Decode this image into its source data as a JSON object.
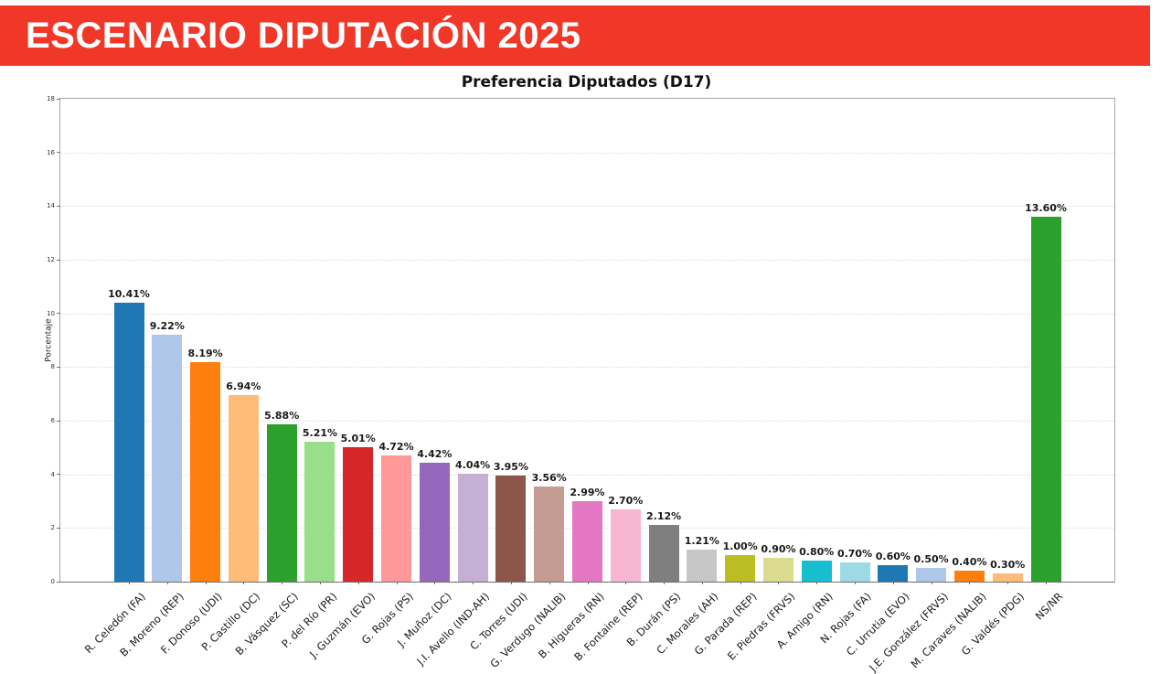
{
  "banner": {
    "title": "ESCENARIO DIPUTACIÓN 2025",
    "bg_color": "#f13728",
    "text_color": "#ffffff"
  },
  "chart_data": {
    "type": "bar",
    "title": "Preferencia Diputados (D17)",
    "xlabel": "",
    "ylabel": "Porcentaje",
    "ylim": [
      0,
      18
    ],
    "yticks": [
      0,
      2,
      4,
      6,
      8,
      10,
      12,
      14,
      16,
      18
    ],
    "grid": "horizontal-dotted",
    "legend": "none",
    "categories": [
      "R. Celedón (FA)",
      "B. Moreno (REP)",
      "F. Donoso (UDI)",
      "P. Castillo (DC)",
      "B. Vásquez (SC)",
      "P. del Río (PR)",
      "J. Guzmán (EVO)",
      "G. Rojas (PS)",
      "J. Muñoz (DC)",
      "J.I. Avello (IND-AH)",
      "C. Torres (UDI)",
      "G. Verdugo (NALIB)",
      "B. Higueras (RN)",
      "B. Fontaine (REP)",
      "B. Durán (PS)",
      "C. Morales (AH)",
      "G. Parada (REP)",
      "E. Piedras (FRVS)",
      "A. Amigo (RN)",
      "N. Rojas (FA)",
      "C. Urrutia (EVO)",
      "J.E. González (FRVS)",
      "M. Caraves (NALIB)",
      "G. Valdés (PDG)",
      "NS/NR"
    ],
    "values": [
      10.41,
      9.22,
      8.19,
      6.94,
      5.88,
      5.21,
      5.01,
      4.72,
      4.42,
      4.04,
      3.95,
      3.56,
      2.99,
      2.7,
      2.12,
      1.21,
      1.0,
      0.9,
      0.8,
      0.7,
      0.6,
      0.5,
      0.4,
      0.3,
      13.6
    ],
    "value_labels": [
      "10.41%",
      "9.22%",
      "8.19%",
      "6.94%",
      "5.88%",
      "5.21%",
      "5.01%",
      "4.72%",
      "4.42%",
      "4.04%",
      "3.95%",
      "3.56%",
      "2.99%",
      "2.70%",
      "2.12%",
      "1.21%",
      "1.00%",
      "0.90%",
      "0.80%",
      "0.70%",
      "0.60%",
      "0.50%",
      "0.40%",
      "0.30%",
      "13.60%"
    ],
    "bar_colors": [
      "#1f77b4",
      "#aec7e8",
      "#ff7f0e",
      "#ffbb78",
      "#2ca02c",
      "#98df8a",
      "#d62728",
      "#ff9896",
      "#9467bd",
      "#c5b0d5",
      "#8c564b",
      "#c49c94",
      "#e377c2",
      "#f7b6d2",
      "#7f7f7f",
      "#c7c7c7",
      "#bcbd22",
      "#dbdb8d",
      "#17becf",
      "#9edae5",
      "#1f77b4",
      "#aec7e8",
      "#ff7f0e",
      "#ffbb78",
      "#2ca02c"
    ]
  }
}
